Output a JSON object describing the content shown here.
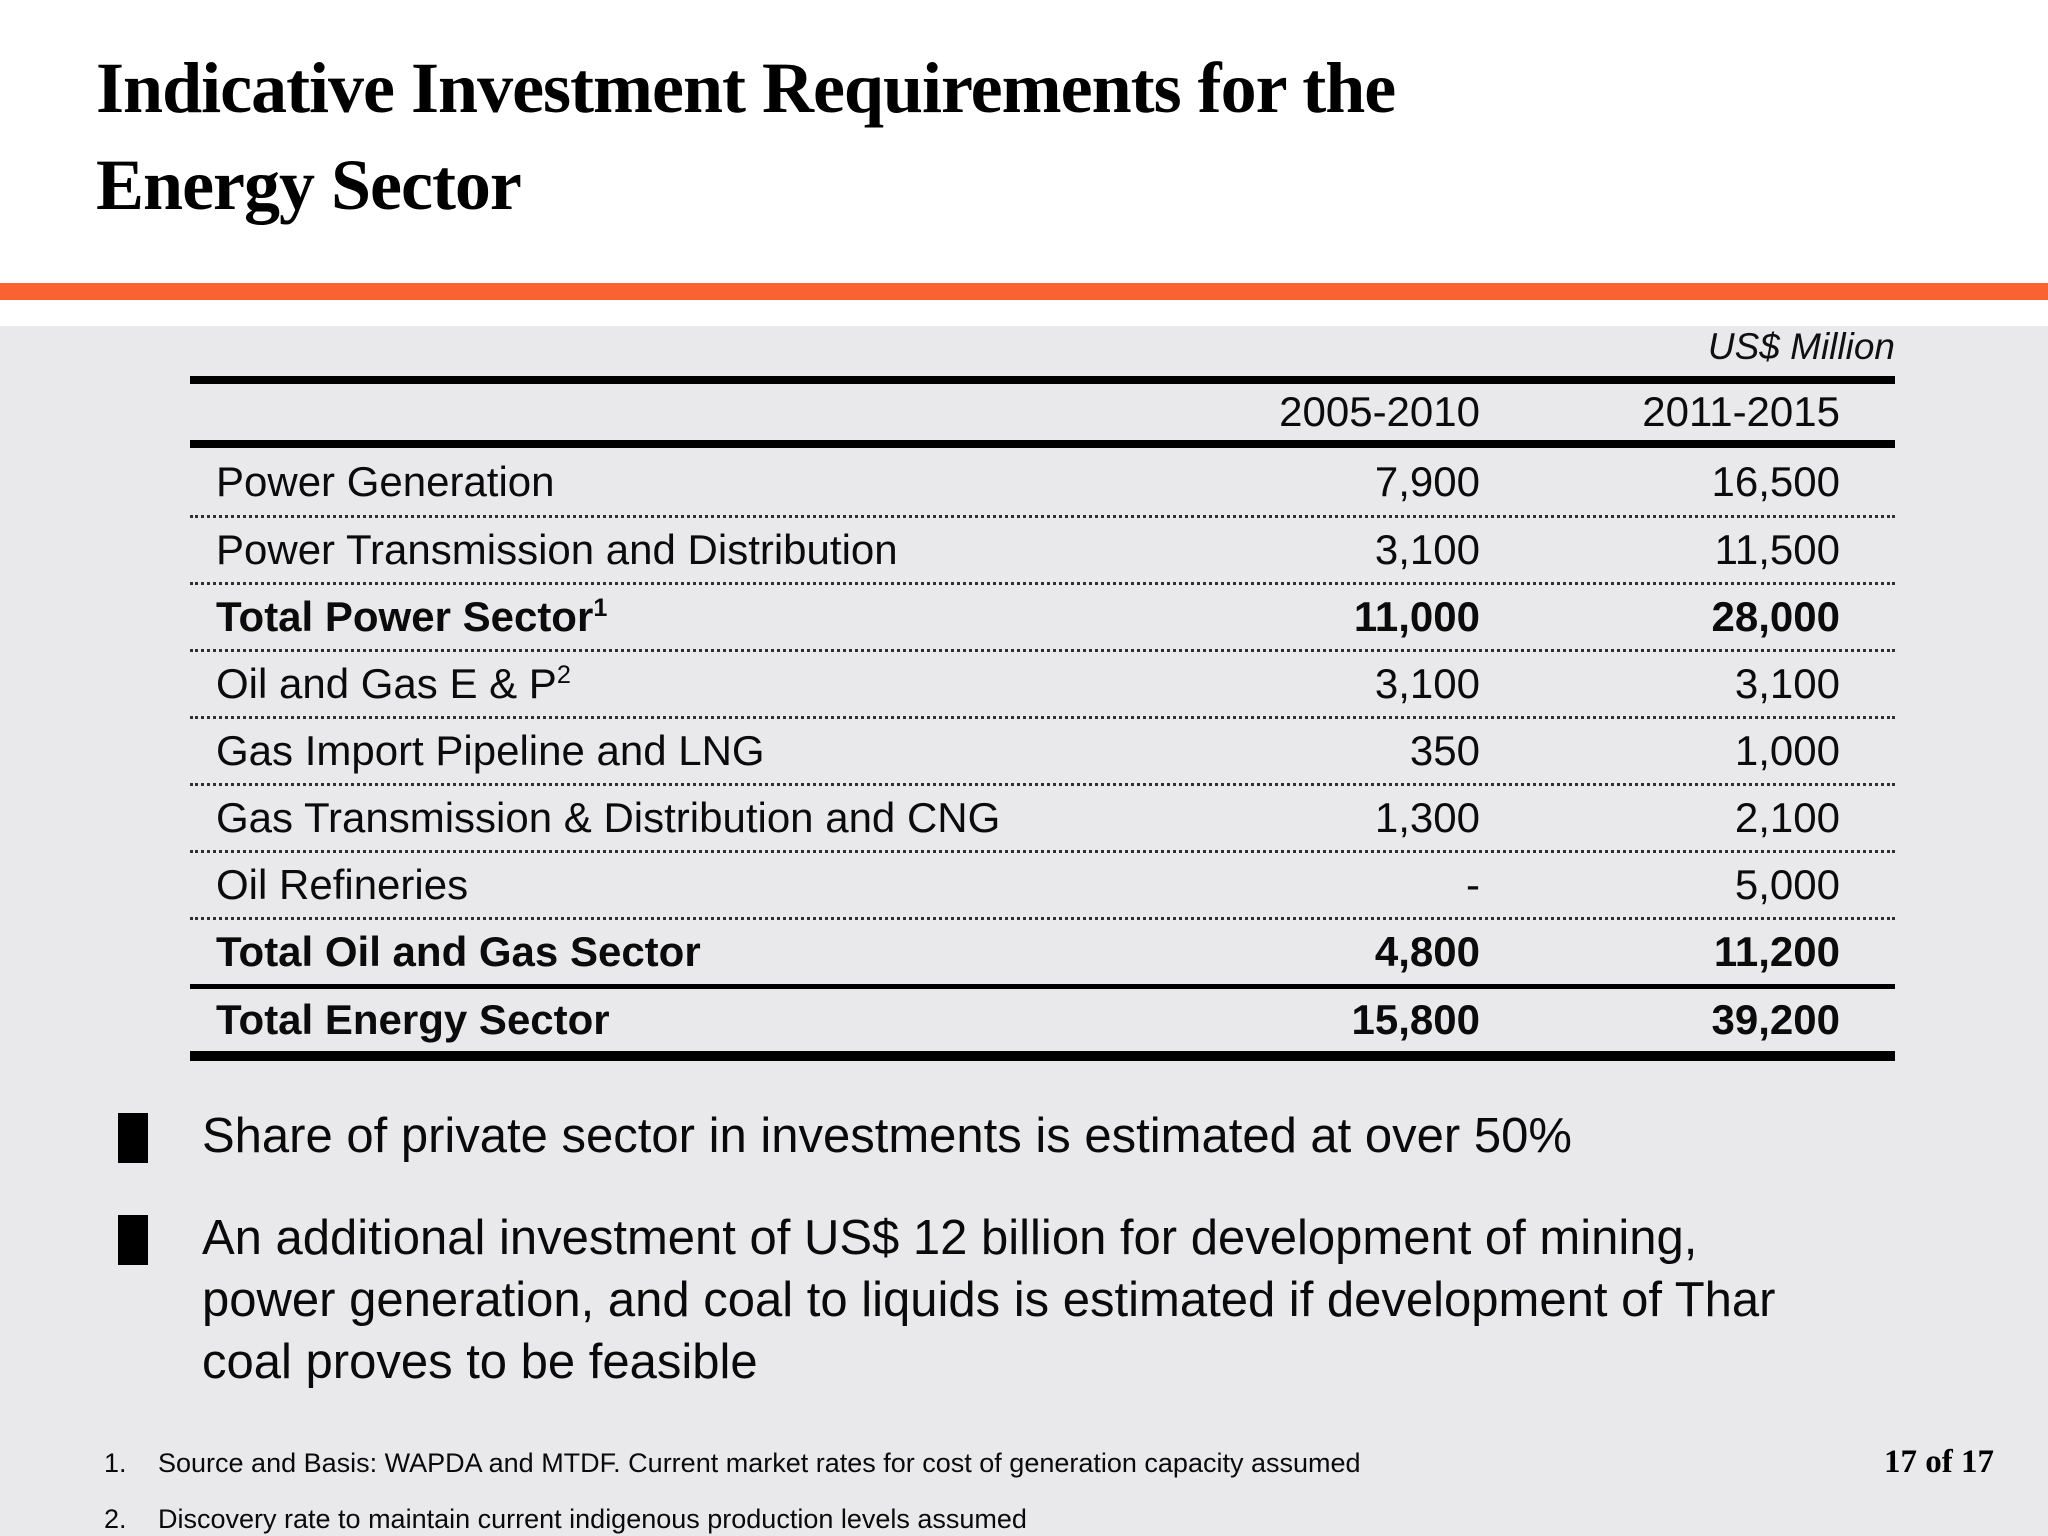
{
  "slide": {
    "title_line1": "Indicative Investment Requirements for the",
    "title_line2": "Energy Sector",
    "accent_color": "#FA6331",
    "body_bg": "#E9E8EA",
    "page_number": "17 of 17"
  },
  "table": {
    "unit_label": "US$ Million",
    "columns": [
      "2005-2010",
      "2011-2015"
    ],
    "rows": [
      {
        "label": "Power Generation",
        "sup": "",
        "values": [
          "7,900",
          "16,500"
        ],
        "bold": false,
        "divider_above": "dotted"
      },
      {
        "label": "Power Transmission and Distribution",
        "sup": "",
        "values": [
          "3,100",
          "11,500"
        ],
        "bold": false,
        "divider_above": "dotted"
      },
      {
        "label": "Total Power Sector",
        "sup": "1",
        "values": [
          "11,000",
          "28,000"
        ],
        "bold": true,
        "divider_above": "dotted"
      },
      {
        "label": "Oil and Gas E & P",
        "sup": "2",
        "values": [
          "3,100",
          "3,100"
        ],
        "bold": false,
        "divider_above": "dotted"
      },
      {
        "label": "Gas Import Pipeline and LNG",
        "sup": "",
        "values": [
          "350",
          "1,000"
        ],
        "bold": false,
        "divider_above": "dotted"
      },
      {
        "label": "Gas Transmission & Distribution and CNG",
        "sup": "",
        "values": [
          "1,300",
          "2,100"
        ],
        "bold": false,
        "divider_above": "dotted"
      },
      {
        "label": "Oil Refineries",
        "sup": "",
        "values": [
          "-",
          "5,000"
        ],
        "bold": false,
        "divider_above": "dotted"
      },
      {
        "label": "Total Oil and Gas Sector",
        "sup": "",
        "values": [
          "4,800",
          "11,200"
        ],
        "bold": true,
        "divider_above": "dotted"
      },
      {
        "label": "Total Energy Sector",
        "sup": "",
        "values": [
          "15,800",
          "39,200"
        ],
        "bold": true,
        "divider_above": "solid"
      }
    ]
  },
  "bullets": [
    "Share of private sector in investments is estimated at over 50%",
    "An additional investment of US$ 12 billion for development of mining, power generation, and coal to liquids is estimated if development of Thar coal proves to be feasible"
  ],
  "footnotes": [
    {
      "num": "1.",
      "text": "Source and Basis: WAPDA and MTDF. Current market rates for cost of generation capacity assumed"
    },
    {
      "num": "2.",
      "text": "Discovery rate to maintain current indigenous production levels assumed"
    }
  ]
}
